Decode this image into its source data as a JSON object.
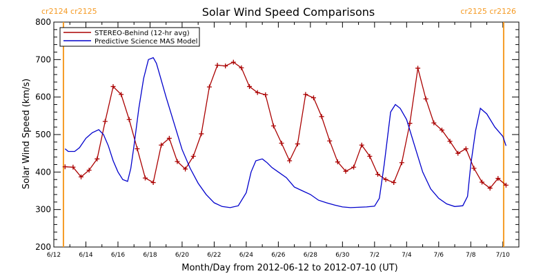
{
  "chart_data": {
    "type": "line",
    "title": "Solar Wind Speed Comparisons",
    "xlabel": "Month/Day from 2012-06-12 to 2012-07-10 (UT)",
    "ylabel": "Solar Wind Speed (km/s)",
    "ylim": [
      200,
      800
    ],
    "xlim": [
      0,
      29
    ],
    "yticks": [
      200,
      300,
      400,
      500,
      600,
      700,
      800
    ],
    "x_ticks": [
      {
        "x": 0,
        "label": "6/12"
      },
      {
        "x": 2,
        "label": "6/14"
      },
      {
        "x": 4,
        "label": "6/16"
      },
      {
        "x": 6,
        "label": "6/18"
      },
      {
        "x": 8,
        "label": "6/20"
      },
      {
        "x": 10,
        "label": "6/22"
      },
      {
        "x": 12,
        "label": "6/24"
      },
      {
        "x": 14,
        "label": "6/26"
      },
      {
        "x": 16,
        "label": "6/28"
      },
      {
        "x": 18,
        "label": "6/30"
      },
      {
        "x": 20,
        "label": "7/2"
      },
      {
        "x": 22,
        "label": "7/4"
      },
      {
        "x": 24,
        "label": "7/6"
      },
      {
        "x": 26,
        "label": "7/8"
      },
      {
        "x": 28,
        "label": "7/10"
      }
    ],
    "cr_lines": [
      {
        "x": 0.6,
        "label": "cr2124 cr2125",
        "align": "left"
      },
      {
        "x": 28.05,
        "label": "cr2125 cr2126",
        "align": "right"
      }
    ],
    "legend_position": "top-left",
    "series": [
      {
        "name": "STEREO-Behind (12-hr avg)",
        "color": "#aa0000",
        "marker": "plus",
        "x": [
          0.7,
          1.2,
          1.7,
          2.2,
          2.7,
          3.2,
          3.7,
          4.2,
          4.7,
          5.2,
          5.7,
          6.2,
          6.7,
          7.2,
          7.7,
          8.2,
          8.7,
          9.2,
          9.7,
          10.2,
          10.7,
          11.2,
          11.7,
          12.2,
          12.7,
          13.2,
          13.7,
          14.2,
          14.7,
          15.2,
          15.7,
          16.2,
          16.7,
          17.2,
          17.7,
          18.2,
          18.7,
          19.2,
          19.7,
          20.2,
          20.7,
          21.2,
          21.7,
          22.2,
          22.7,
          23.2,
          23.7,
          24.2,
          24.7,
          25.2,
          25.7,
          26.2,
          26.7,
          27.2,
          27.7,
          28.2
        ],
        "y": [
          414,
          413,
          387,
          405,
          435,
          535,
          628,
          607,
          540,
          462,
          384,
          372,
          472,
          490,
          428,
          408,
          442,
          502,
          627,
          685,
          683,
          693,
          678,
          628,
          612,
          606,
          523,
          477,
          430,
          475,
          607,
          598,
          548,
          483,
          427,
          402,
          413,
          472,
          442,
          394,
          380,
          372,
          425,
          530,
          677,
          595,
          531,
          512,
          482,
          450,
          462,
          410,
          373,
          357,
          383,
          365
        ]
      },
      {
        "name": "Predictive Science MAS Model",
        "color": "#0000cc",
        "marker": "none",
        "x": [
          0.7,
          0.9,
          1.3,
          1.6,
          2.0,
          2.4,
          2.8,
          3.1,
          3.4,
          3.7,
          4.0,
          4.3,
          4.6,
          4.8,
          5.0,
          5.3,
          5.6,
          5.9,
          6.2,
          6.4,
          6.6,
          7.0,
          7.5,
          8.0,
          8.5,
          9.0,
          9.5,
          10.0,
          10.5,
          11.0,
          11.5,
          12.0,
          12.3,
          12.6,
          13.0,
          13.3,
          13.6,
          14.0,
          14.5,
          15.0,
          15.5,
          16.0,
          16.5,
          17.0,
          17.5,
          18.0,
          18.5,
          19.0,
          19.5,
          20.0,
          20.3,
          20.6,
          21.0,
          21.3,
          21.6,
          22.0,
          22.5,
          23.0,
          23.5,
          24.0,
          24.5,
          25.0,
          25.5,
          25.8,
          26.0,
          26.3,
          26.6,
          27.0,
          27.5,
          28.0,
          28.2
        ],
        "y": [
          462,
          455,
          455,
          465,
          490,
          505,
          513,
          500,
          470,
          430,
          400,
          380,
          375,
          410,
          470,
          570,
          650,
          700,
          705,
          690,
          660,
          600,
          530,
          460,
          410,
          370,
          340,
          318,
          308,
          305,
          310,
          345,
          400,
          430,
          435,
          425,
          412,
          400,
          385,
          360,
          350,
          340,
          325,
          318,
          312,
          307,
          305,
          306,
          307,
          309,
          330,
          420,
          560,
          580,
          570,
          540,
          470,
          400,
          355,
          330,
          315,
          308,
          310,
          335,
          420,
          510,
          570,
          555,
          520,
          495,
          470
        ]
      }
    ]
  }
}
